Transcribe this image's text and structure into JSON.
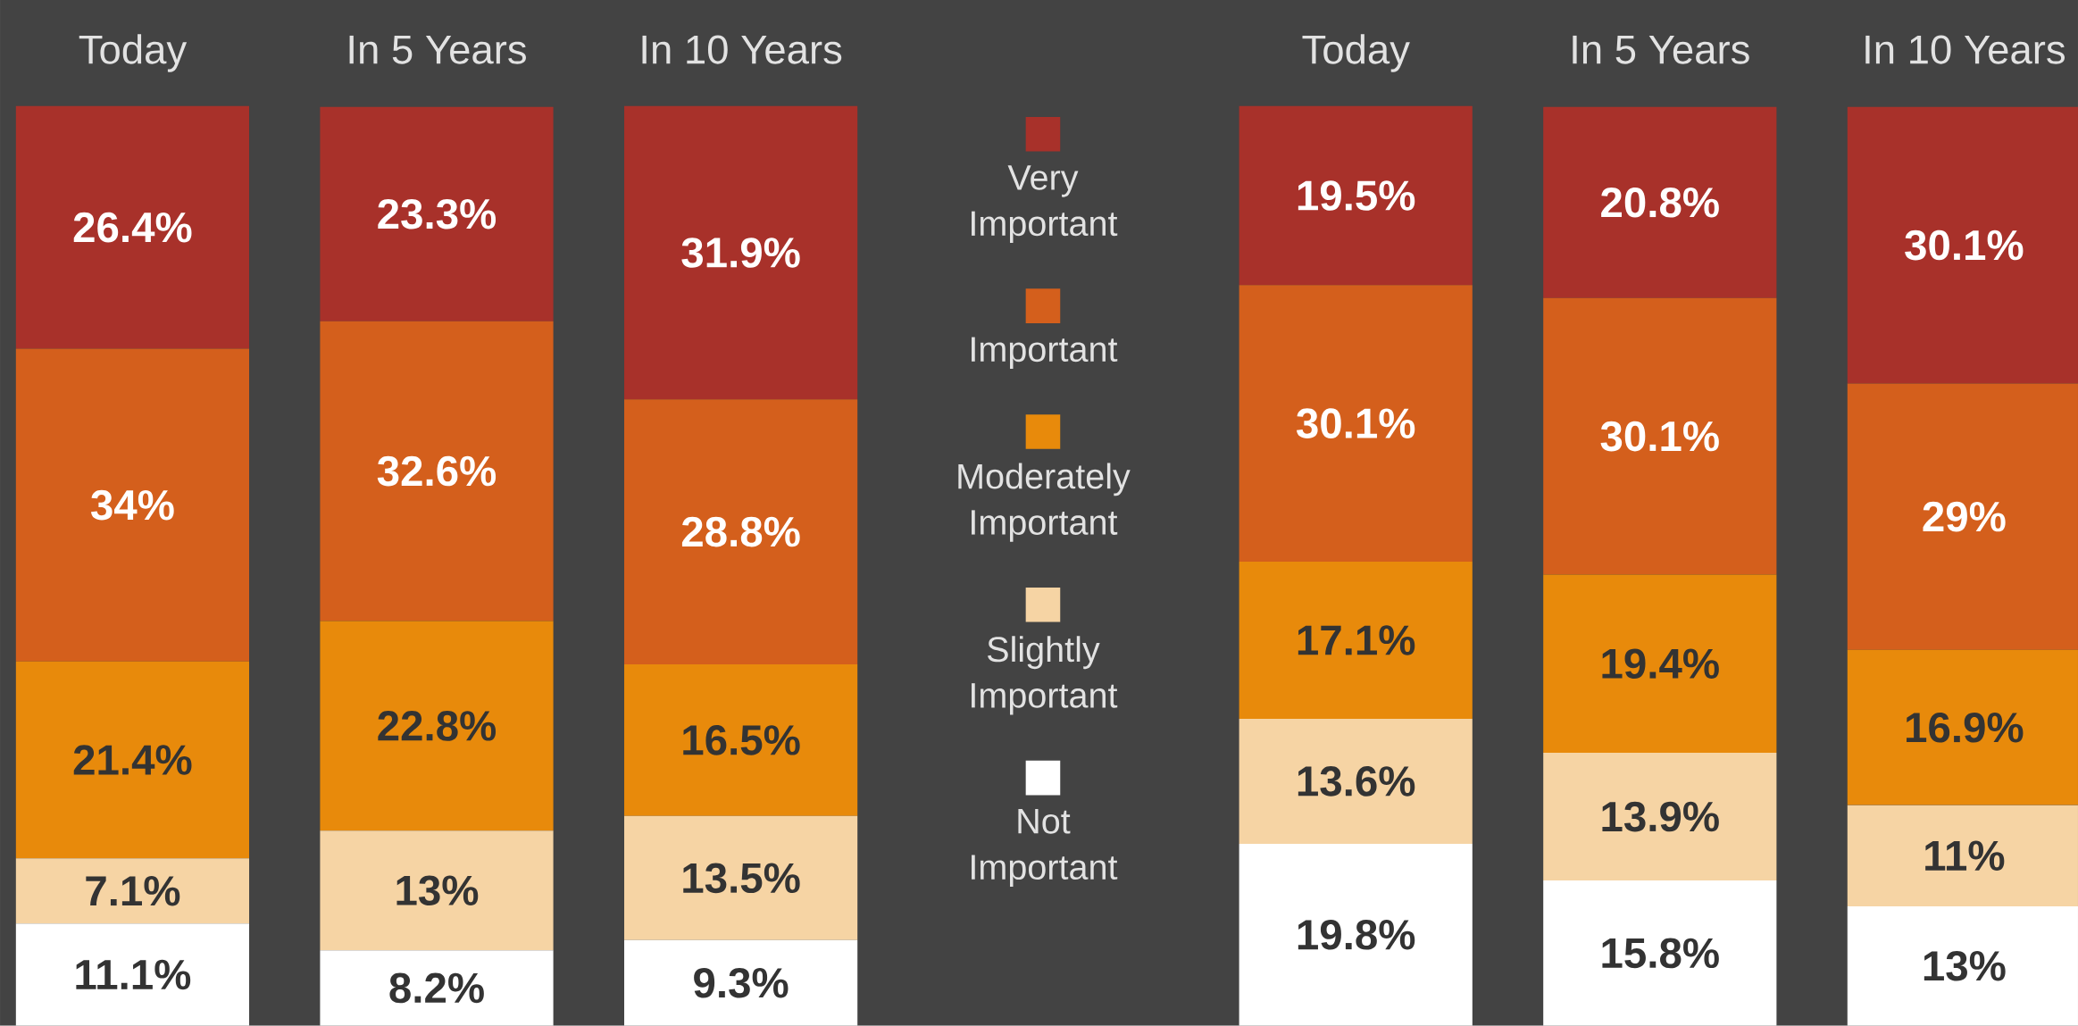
{
  "chart_data": [
    {
      "type": "bar",
      "stacked": true,
      "categories": [
        "Today",
        "In 5 Years",
        "In 10 Years"
      ],
      "legend": "right",
      "series": [
        {
          "name": "Not Important",
          "color": "#ffffff",
          "values": [
            11.1,
            8.2,
            9.3
          ],
          "value_labels": [
            "11.1%",
            "8.2%",
            "9.3%"
          ]
        },
        {
          "name": "Slightly Important",
          "color": "#f6d4a4",
          "values": [
            7.1,
            13,
            13.5
          ],
          "value_labels": [
            "7.1%",
            "13%",
            "13.5%"
          ]
        },
        {
          "name": "Moderately Important",
          "color": "#e88a0b",
          "values": [
            21.4,
            22.8,
            16.5
          ],
          "value_labels": [
            "21.4%",
            "22.8%",
            "16.5%"
          ]
        },
        {
          "name": "Important",
          "color": "#d45f1c",
          "values": [
            34,
            32.6,
            28.8
          ],
          "value_labels": [
            "34%",
            "32.6%",
            "28.8%"
          ]
        },
        {
          "name": "Very Important",
          "color": "#a8312a",
          "values": [
            26.4,
            23.3,
            31.9
          ],
          "value_labels": [
            "26.4%",
            "23.3%",
            "31.9%"
          ]
        }
      ]
    },
    {
      "type": "bar",
      "stacked": true,
      "categories": [
        "Today",
        "In 5 Years",
        "In 10 Years"
      ],
      "series": [
        {
          "color": "#ffffff",
          "values": [
            19.8,
            15.8,
            13
          ],
          "value_labels": [
            "19.8%",
            "15.8%",
            "13%"
          ]
        },
        {
          "color": "#f6d4a4",
          "values": [
            13.6,
            13.9,
            11
          ],
          "value_labels": [
            "13.6%",
            "13.9%",
            "11%"
          ]
        },
        {
          "color": "#e88a0b",
          "values": [
            17.1,
            19.4,
            16.9
          ],
          "value_labels": [
            "17.1%",
            "19.4%",
            "16.9%"
          ]
        },
        {
          "color": "#d45f1c",
          "values": [
            30.1,
            30.1,
            29
          ],
          "value_labels": [
            "30.1%",
            "30.1%",
            "29%"
          ]
        },
        {
          "color": "#a8312a",
          "values": [
            19.5,
            20.8,
            30.1
          ],
          "value_labels": [
            "19.5%",
            "20.8%",
            "30.1%"
          ]
        }
      ]
    }
  ]
}
